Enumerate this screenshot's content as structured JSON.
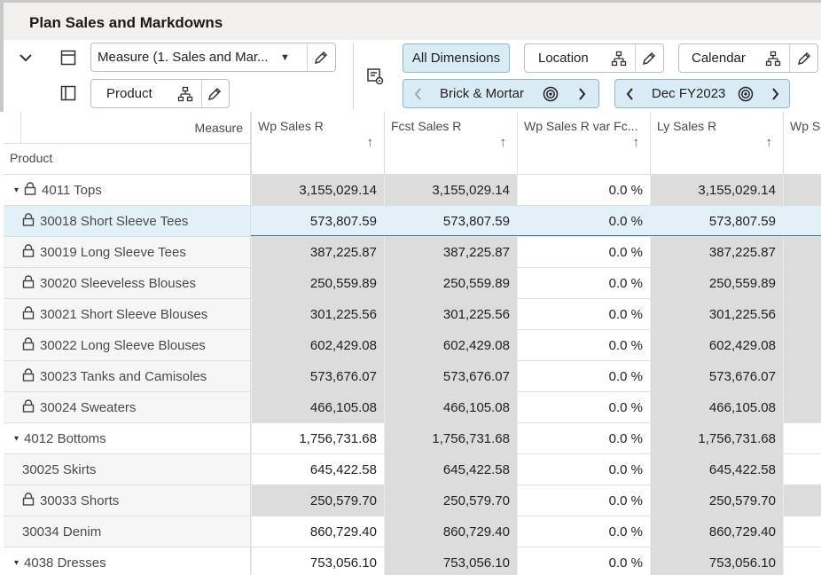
{
  "title": "Plan Sales and Markdowns",
  "toolbar": {
    "measure_select": "Measure (1. Sales and Mar...",
    "product_label": "Product",
    "all_dimensions": "All Dimensions",
    "location_label": "Location",
    "calendar_label": "Calendar",
    "location_value": "Brick & Mortar",
    "calendar_value": "Dec FY2023"
  },
  "grid": {
    "measure_header": "Measure",
    "product_header": "Product",
    "columns": [
      "Wp Sales R",
      "Fcst Sales R",
      "Wp Sales R var Fc...",
      "Ly Sales R",
      "Wp Sa"
    ],
    "sort_arrow": "↑",
    "rows": [
      {
        "label": "4011 Tops",
        "level": 0,
        "expand": "▾",
        "locked": true,
        "values": [
          "3,155,029.14",
          "3,155,029.14",
          "0.0 %",
          "3,155,029.14"
        ]
      },
      {
        "label": "30018 Short Sleeve Tees",
        "level": 1,
        "locked": true,
        "selected": true,
        "values": [
          "573,807.59",
          "573,807.59",
          "0.0 %",
          "573,807.59"
        ]
      },
      {
        "label": "30019 Long Sleeve Tees",
        "level": 1,
        "locked": true,
        "values": [
          "387,225.87",
          "387,225.87",
          "0.0 %",
          "387,225.87"
        ]
      },
      {
        "label": "30020 Sleeveless Blouses",
        "level": 1,
        "locked": true,
        "values": [
          "250,559.89",
          "250,559.89",
          "0.0 %",
          "250,559.89"
        ]
      },
      {
        "label": "30021 Short Sleeve Blouses",
        "level": 1,
        "locked": true,
        "values": [
          "301,225.56",
          "301,225.56",
          "0.0 %",
          "301,225.56"
        ]
      },
      {
        "label": "30022 Long Sleeve Blouses",
        "level": 1,
        "locked": true,
        "values": [
          "602,429.08",
          "602,429.08",
          "0.0 %",
          "602,429.08"
        ]
      },
      {
        "label": "30023 Tanks and Camisoles",
        "level": 1,
        "locked": true,
        "values": [
          "573,676.07",
          "573,676.07",
          "0.0 %",
          "573,676.07"
        ]
      },
      {
        "label": "30024 Sweaters",
        "level": 1,
        "locked": true,
        "values": [
          "466,105.08",
          "466,105.08",
          "0.0 %",
          "466,105.08"
        ]
      },
      {
        "label": "4012 Bottoms",
        "level": 0,
        "expand": "▾",
        "locked": false,
        "values": [
          "1,756,731.68",
          "1,756,731.68",
          "0.0 %",
          "1,756,731.68"
        ]
      },
      {
        "label": "30025 Skirts",
        "level": 1,
        "locked": false,
        "values": [
          "645,422.58",
          "645,422.58",
          "0.0 %",
          "645,422.58"
        ]
      },
      {
        "label": "30033 Shorts",
        "level": 1,
        "locked": true,
        "values": [
          "250,579.70",
          "250,579.70",
          "0.0 %",
          "250,579.70"
        ]
      },
      {
        "label": "30034 Denim",
        "level": 1,
        "locked": false,
        "values": [
          "860,729.40",
          "860,729.40",
          "0.0 %",
          "860,729.40"
        ]
      },
      {
        "label": "4038 Dresses",
        "level": 0,
        "expand": "▾",
        "locked": false,
        "values": [
          "753,056.10",
          "753,056.10",
          "0.0 %",
          "753,056.10"
        ]
      }
    ]
  },
  "colors": {
    "locked_bg": "#dcdcdc",
    "selected_bg": "#e2f1f8",
    "selected_border": "#3d7fa3",
    "pill_bg": "#d9ebf5",
    "label_bg": "#f6f6f6"
  }
}
